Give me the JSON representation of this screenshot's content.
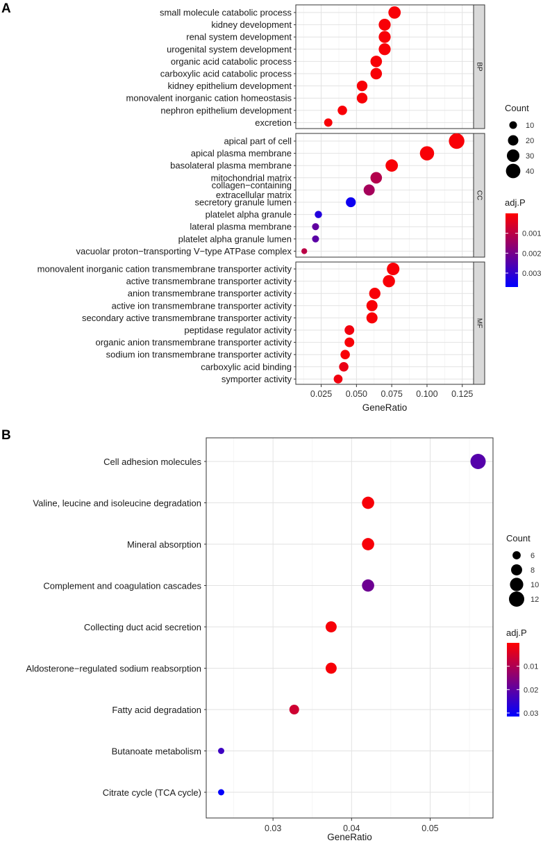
{
  "chart_data": [
    {
      "panel": "A",
      "type": "scatter",
      "xlabel": "GeneRatio",
      "xlim": [
        0.007,
        0.133
      ],
      "xticks": [
        0.025,
        0.05,
        0.075,
        0.1,
        0.125
      ],
      "xtick_labels": [
        "0.025",
        "0.050",
        "0.075",
        "0.100",
        "0.125"
      ],
      "facets": [
        {
          "name": "BP",
          "terms": [
            {
              "label": "small molecule catabolic process",
              "x": 0.077,
              "count": 29,
              "padj": 0.0001
            },
            {
              "label": "kidney development",
              "x": 0.07,
              "count": 27,
              "padj": 0.0001
            },
            {
              "label": "renal system development",
              "x": 0.07,
              "count": 27,
              "padj": 0.0001
            },
            {
              "label": "urogenital system development",
              "x": 0.07,
              "count": 27,
              "padj": 0.0001
            },
            {
              "label": "organic acid catabolic process",
              "x": 0.064,
              "count": 25,
              "padj": 0.0001
            },
            {
              "label": "carboxylic acid catabolic process",
              "x": 0.064,
              "count": 25,
              "padj": 0.0001
            },
            {
              "label": "kidney epithelium development",
              "x": 0.054,
              "count": 21,
              "padj": 0.0001
            },
            {
              "label": "monovalent inorganic cation homeostasis",
              "x": 0.054,
              "count": 21,
              "padj": 0.0001
            },
            {
              "label": "nephron epithelium development",
              "x": 0.04,
              "count": 16,
              "padj": 0.0001
            },
            {
              "label": "excretion",
              "x": 0.03,
              "count": 12,
              "padj": 0.0001
            }
          ]
        },
        {
          "name": "CC",
          "terms": [
            {
              "label": "apical part of cell",
              "x": 0.121,
              "count": 47,
              "padj": 0.0001
            },
            {
              "label": "apical plasma membrane",
              "x": 0.1,
              "count": 39,
              "padj": 0.0001
            },
            {
              "label": "basolateral plasma membrane",
              "x": 0.075,
              "count": 29,
              "padj": 0.0001
            },
            {
              "label": "mitochondrial matrix",
              "x": 0.064,
              "count": 25,
              "padj": 0.0011
            },
            {
              "label": "collagen−containing\nextracellular matrix",
              "x": 0.059,
              "count": 23,
              "padj": 0.0013
            },
            {
              "label": "secretory granule lumen",
              "x": 0.046,
              "count": 18,
              "padj": 0.0035
            },
            {
              "label": "platelet alpha granule",
              "x": 0.023,
              "count": 9,
              "padj": 0.0032
            },
            {
              "label": "lateral plasma membrane",
              "x": 0.021,
              "count": 8,
              "padj": 0.0023
            },
            {
              "label": "platelet alpha granule lumen",
              "x": 0.021,
              "count": 8,
              "padj": 0.0024
            },
            {
              "label": "vacuolar proton−transporting V−type ATPase complex",
              "x": 0.013,
              "count": 5,
              "padj": 0.001
            }
          ]
        },
        {
          "name": "MF",
          "terms": [
            {
              "label": "monovalent inorganic cation transmembrane transporter activity",
              "x": 0.076,
              "count": 30,
              "padj": 0.0001
            },
            {
              "label": "active transmembrane transporter activity",
              "x": 0.073,
              "count": 28,
              "padj": 0.0001
            },
            {
              "label": "anion transmembrane transporter activity",
              "x": 0.063,
              "count": 24,
              "padj": 0.0001
            },
            {
              "label": "active ion transmembrane transporter activity",
              "x": 0.061,
              "count": 23,
              "padj": 0.0001
            },
            {
              "label": "secondary active transmembrane transporter activity",
              "x": 0.061,
              "count": 23,
              "padj": 0.0001
            },
            {
              "label": "peptidase regulator activity",
              "x": 0.045,
              "count": 17,
              "padj": 0.0002
            },
            {
              "label": "organic anion transmembrane transporter activity",
              "x": 0.045,
              "count": 17,
              "padj": 0.0001
            },
            {
              "label": "sodium ion transmembrane transporter activity",
              "x": 0.042,
              "count": 16,
              "padj": 0.0001
            },
            {
              "label": "carboxylic acid binding",
              "x": 0.041,
              "count": 16,
              "padj": 0.0003
            },
            {
              "label": "symporter activity",
              "x": 0.037,
              "count": 14,
              "padj": 0.0002
            }
          ]
        }
      ],
      "legend_count": {
        "title": "Count",
        "values": [
          10,
          20,
          30,
          40
        ]
      },
      "legend_color": {
        "title": "adj.P",
        "range": [
          0,
          0.0037
        ],
        "ticks": [
          0.001,
          0.002,
          0.003
        ],
        "tick_labels": [
          "0.001",
          "0.002",
          "0.003"
        ],
        "low_color": "#ff0000",
        "high_color": "#0000ff"
      }
    },
    {
      "panel": "B",
      "type": "scatter",
      "xlabel": "GeneRatio",
      "xlim": [
        0.0215,
        0.058
      ],
      "xticks": [
        0.03,
        0.04,
        0.05
      ],
      "xtick_labels": [
        "0.03",
        "0.04",
        "0.05"
      ],
      "terms": [
        {
          "label": "Cell adhesion molecules",
          "x": 0.0561,
          "count": 12,
          "padj": 0.021
        },
        {
          "label": "Valine, leucine and isoleucine degradation",
          "x": 0.0421,
          "count": 9,
          "padj": 0.001
        },
        {
          "label": "Mineral absorption",
          "x": 0.0421,
          "count": 9,
          "padj": 0.001
        },
        {
          "label": "Complement and coagulation cascades",
          "x": 0.0421,
          "count": 9,
          "padj": 0.018
        },
        {
          "label": "Collecting duct acid secretion",
          "x": 0.0374,
          "count": 8,
          "padj": 0.001
        },
        {
          "label": "Aldosterone−regulated sodium reabsorption",
          "x": 0.0374,
          "count": 8,
          "padj": 0.001
        },
        {
          "label": "Fatty acid degradation",
          "x": 0.0327,
          "count": 7,
          "padj": 0.006
        },
        {
          "label": "Butanoate metabolism",
          "x": 0.0234,
          "count": 5,
          "padj": 0.024
        },
        {
          "label": "Citrate cycle (TCA cycle)",
          "x": 0.0234,
          "count": 5,
          "padj": 0.031
        }
      ],
      "legend_count": {
        "title": "Count",
        "values": [
          6,
          8,
          10,
          12
        ]
      },
      "legend_color": {
        "title": "adj.P",
        "range": [
          0,
          0.0315
        ],
        "ticks": [
          0.01,
          0.02,
          0.03
        ],
        "tick_labels": [
          "0.01",
          "0.02",
          "0.03"
        ],
        "low_color": "#ff0000",
        "high_color": "#0000ff"
      }
    }
  ],
  "panel_labels": {
    "a": "A",
    "b": "B"
  }
}
